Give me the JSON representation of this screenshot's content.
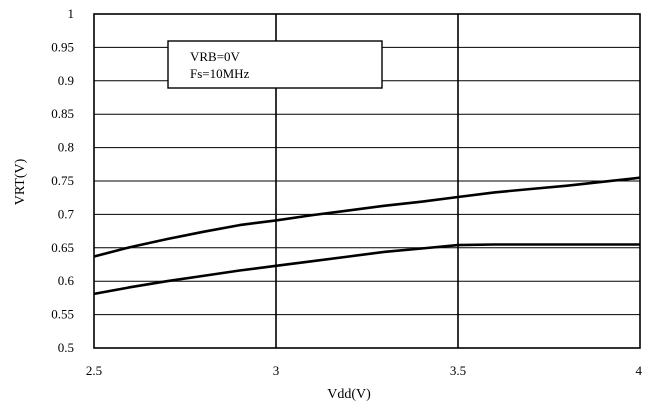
{
  "chart_data": {
    "type": "line",
    "xlabel": "Vdd(V)",
    "ylabel": "VRT(V)",
    "xlim": [
      2.5,
      4
    ],
    "ylim": [
      0.5,
      1
    ],
    "xticks": [
      2.5,
      3,
      3.5,
      4
    ],
    "xtick_labels": [
      "2.5",
      "3",
      "3.5",
      "4"
    ],
    "yticks": [
      0.5,
      0.55,
      0.6,
      0.65,
      0.7,
      0.75,
      0.8,
      0.85,
      0.9,
      0.95,
      1
    ],
    "ytick_labels": [
      "0.5",
      "0.55",
      "0.6",
      "0.65",
      "0.7",
      "0.75",
      "0.8",
      "0.85",
      "0.9",
      "0.95",
      "1"
    ],
    "grid": true,
    "annotation": [
      "VRB=0V",
      "Fs=10MHz"
    ],
    "series": [
      {
        "x": [
          2.5,
          2.6,
          2.7,
          2.8,
          2.9,
          3.0,
          3.1,
          3.2,
          3.3,
          3.4,
          3.5,
          3.6,
          3.7,
          3.8,
          3.9,
          4.0
        ],
        "y": [
          0.637,
          0.651,
          0.663,
          0.674,
          0.684,
          0.691,
          0.699,
          0.706,
          0.713,
          0.719,
          0.726,
          0.733,
          0.738,
          0.743,
          0.749,
          0.755
        ]
      },
      {
        "x": [
          2.5,
          2.6,
          2.7,
          2.8,
          2.9,
          3.0,
          3.1,
          3.2,
          3.3,
          3.4,
          3.5,
          3.6,
          3.7,
          3.8,
          3.9,
          4.0
        ],
        "y": [
          0.581,
          0.591,
          0.6,
          0.608,
          0.616,
          0.623,
          0.63,
          0.637,
          0.644,
          0.649,
          0.654,
          0.655,
          0.655,
          0.655,
          0.655,
          0.655
        ]
      }
    ],
    "line_color": "#000000"
  }
}
